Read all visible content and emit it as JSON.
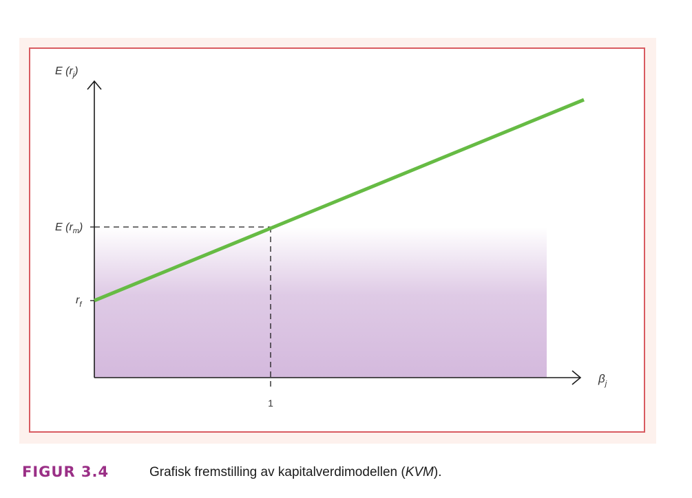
{
  "figure": {
    "y_axis_label": "E (r",
    "y_axis_sub": "j",
    "y_axis_close": ")",
    "x_axis_label": "β",
    "x_axis_sub": "j",
    "market_return_label": "E (r",
    "market_return_sub": "m",
    "market_return_close": ")",
    "risk_free_label": "r",
    "risk_free_sub": "f",
    "beta_one_tick": "1",
    "line_color": "#66bb44",
    "shade_color": "#d4b9dd",
    "border_color": "#d85a60"
  },
  "chart_data": {
    "type": "line",
    "series": [
      {
        "x": [
          0,
          1
        ],
        "y_labels": [
          "r_f",
          "E(r_m)"
        ]
      }
    ]
  },
  "caption": {
    "label": "FIGUR 3.4",
    "text": "Grafisk fremstilling av kapitalverdimodellen (",
    "abbr": "KVM",
    "text_end": ")."
  }
}
